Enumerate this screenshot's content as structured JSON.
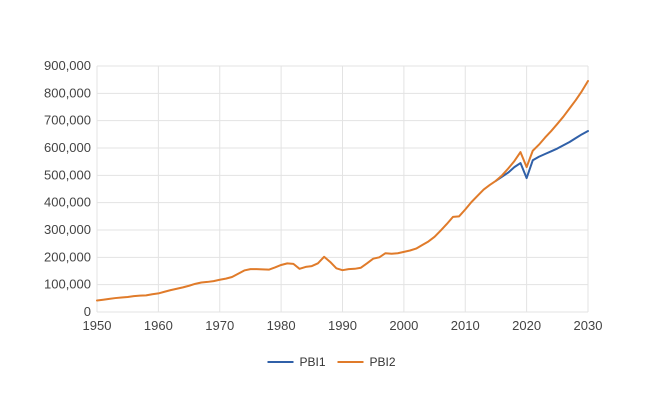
{
  "chart_data": {
    "type": "line",
    "title": "",
    "xlabel": "",
    "ylabel": "",
    "xlim": [
      1950,
      2030
    ],
    "ylim": [
      0,
      900000
    ],
    "x_ticks": [
      1950,
      1960,
      1970,
      1980,
      1990,
      2000,
      2010,
      2020,
      2030
    ],
    "x_tick_labels": [
      "1950",
      "1960",
      "1970",
      "1980",
      "1990",
      "2000",
      "2010",
      "2020",
      "2030"
    ],
    "y_ticks": [
      0,
      100000,
      200000,
      300000,
      400000,
      500000,
      600000,
      700000,
      800000,
      900000
    ],
    "y_tick_labels": [
      "0",
      "100,000",
      "200,000",
      "300,000",
      "400,000",
      "500,000",
      "600,000",
      "700,000",
      "800,000",
      "900,000"
    ],
    "grid": true,
    "legend_position": "bottom",
    "series": [
      {
        "name": "PBI1",
        "color": "#3060a8",
        "points": [
          [
            2015,
            480000
          ],
          [
            2016,
            495000
          ],
          [
            2017,
            510000
          ],
          [
            2018,
            530000
          ],
          [
            2019,
            545000
          ],
          [
            2020,
            490000
          ],
          [
            2021,
            555000
          ],
          [
            2022,
            568000
          ],
          [
            2023,
            578000
          ],
          [
            2024,
            588000
          ],
          [
            2025,
            598000
          ],
          [
            2026,
            610000
          ],
          [
            2027,
            622000
          ],
          [
            2028,
            636000
          ],
          [
            2029,
            650000
          ],
          [
            2030,
            662000
          ]
        ]
      },
      {
        "name": "PBI2",
        "color": "#e07b2a",
        "points": [
          [
            1950,
            42000
          ],
          [
            1951,
            45000
          ],
          [
            1952,
            48000
          ],
          [
            1953,
            51000
          ],
          [
            1954,
            53000
          ],
          [
            1955,
            55000
          ],
          [
            1956,
            58000
          ],
          [
            1957,
            60000
          ],
          [
            1958,
            61000
          ],
          [
            1959,
            65000
          ],
          [
            1960,
            68000
          ],
          [
            1961,
            74000
          ],
          [
            1962,
            80000
          ],
          [
            1963,
            85000
          ],
          [
            1964,
            90000
          ],
          [
            1965,
            96000
          ],
          [
            1966,
            103000
          ],
          [
            1967,
            108000
          ],
          [
            1968,
            110000
          ],
          [
            1969,
            113000
          ],
          [
            1970,
            118000
          ],
          [
            1971,
            122000
          ],
          [
            1972,
            128000
          ],
          [
            1973,
            140000
          ],
          [
            1974,
            152000
          ],
          [
            1975,
            157000
          ],
          [
            1976,
            157000
          ],
          [
            1977,
            156000
          ],
          [
            1978,
            155000
          ],
          [
            1979,
            163000
          ],
          [
            1980,
            172000
          ],
          [
            1981,
            178000
          ],
          [
            1982,
            176000
          ],
          [
            1983,
            158000
          ],
          [
            1984,
            165000
          ],
          [
            1985,
            168000
          ],
          [
            1986,
            178000
          ],
          [
            1987,
            202000
          ],
          [
            1988,
            183000
          ],
          [
            1989,
            160000
          ],
          [
            1990,
            153000
          ],
          [
            1991,
            157000
          ],
          [
            1992,
            158000
          ],
          [
            1993,
            162000
          ],
          [
            1994,
            178000
          ],
          [
            1995,
            195000
          ],
          [
            1996,
            200000
          ],
          [
            1997,
            215000
          ],
          [
            1998,
            213000
          ],
          [
            1999,
            215000
          ],
          [
            2000,
            220000
          ],
          [
            2001,
            225000
          ],
          [
            2002,
            232000
          ],
          [
            2003,
            245000
          ],
          [
            2004,
            258000
          ],
          [
            2005,
            275000
          ],
          [
            2006,
            298000
          ],
          [
            2007,
            322000
          ],
          [
            2008,
            348000
          ],
          [
            2009,
            350000
          ],
          [
            2010,
            375000
          ],
          [
            2011,
            402000
          ],
          [
            2012,
            425000
          ],
          [
            2013,
            448000
          ],
          [
            2014,
            465000
          ],
          [
            2015,
            480000
          ],
          [
            2016,
            500000
          ],
          [
            2017,
            525000
          ],
          [
            2018,
            552000
          ],
          [
            2019,
            585000
          ],
          [
            2020,
            530000
          ],
          [
            2021,
            590000
          ],
          [
            2022,
            612000
          ],
          [
            2023,
            638000
          ],
          [
            2024,
            662000
          ],
          [
            2025,
            688000
          ],
          [
            2026,
            715000
          ],
          [
            2027,
            745000
          ],
          [
            2028,
            775000
          ],
          [
            2029,
            808000
          ],
          [
            2030,
            845000
          ]
        ]
      }
    ]
  }
}
